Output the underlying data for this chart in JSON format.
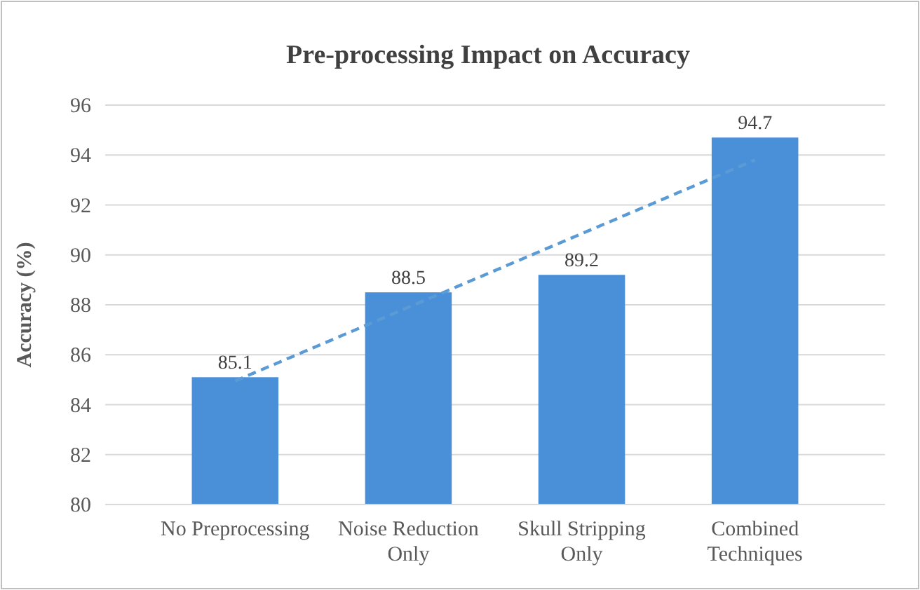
{
  "chart_data": {
    "type": "bar",
    "title": "Pre-processing Impact on Accuracy",
    "ylabel": "Accuracy (%)",
    "categories": [
      "No Preprocessing",
      "Noise Reduction Only",
      "Skull Stripping Only",
      "Combined Techniques"
    ],
    "series": [
      {
        "color": "#4a90d9",
        "values": [
          85.1,
          88.5,
          89.2,
          94.7
        ],
        "value_labels": [
          "85.1",
          "88.5",
          "89.2",
          "94.7"
        ]
      },
      {
        "type": "line",
        "color": "#5b9bd5",
        "line_style": "dashed",
        "values": [
          84.95,
          87.9,
          90.85,
          93.8
        ]
      }
    ],
    "ylim": [
      80,
      96
    ],
    "yticks": [
      80,
      82,
      84,
      86,
      88,
      90,
      92,
      94,
      96
    ],
    "grid": "y"
  }
}
